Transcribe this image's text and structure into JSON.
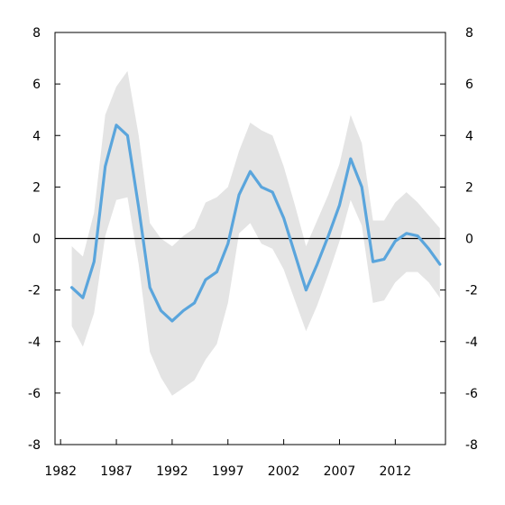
{
  "chart_data": {
    "type": "line",
    "title": "",
    "xlabel": "",
    "ylabel": "",
    "x": [
      1983,
      1984,
      1985,
      1986,
      1987,
      1988,
      1989,
      1990,
      1991,
      1992,
      1993,
      1994,
      1995,
      1996,
      1997,
      1998,
      1999,
      2000,
      2001,
      2002,
      2003,
      2004,
      2005,
      2006,
      2007,
      2008,
      2009,
      2010,
      2011,
      2012,
      2013,
      2014,
      2015,
      2016
    ],
    "series": [
      {
        "values": [
          -1.9,
          -2.3,
          -0.9,
          2.8,
          4.4,
          4.0,
          1.2,
          -1.9,
          -2.8,
          -3.2,
          -2.8,
          -2.5,
          -1.6,
          -1.3,
          -0.2,
          1.7,
          2.6,
          2.0,
          1.8,
          0.8,
          -0.6,
          -2.0,
          -1.0,
          0.1,
          1.3,
          3.1,
          2.0,
          -0.9,
          -0.8,
          -0.1,
          0.2,
          0.1,
          -0.4,
          -1.0
        ]
      }
    ],
    "band": {
      "upper": [
        -0.3,
        -0.7,
        1.0,
        4.8,
        5.9,
        6.5,
        4.0,
        0.6,
        0.0,
        -0.3,
        0.1,
        0.4,
        1.4,
        1.6,
        2.0,
        3.4,
        4.5,
        4.2,
        4.0,
        2.8,
        1.3,
        -0.3,
        0.7,
        1.7,
        2.9,
        4.8,
        3.7,
        0.7,
        0.7,
        1.4,
        1.8,
        1.4,
        0.9,
        0.4
      ],
      "lower": [
        -3.4,
        -4.2,
        -2.9,
        0.1,
        1.5,
        1.6,
        -1.0,
        -4.4,
        -5.4,
        -6.1,
        -5.8,
        -5.5,
        -4.7,
        -4.1,
        -2.5,
        0.2,
        0.6,
        -0.2,
        -0.4,
        -1.2,
        -2.4,
        -3.6,
        -2.6,
        -1.4,
        -0.1,
        1.5,
        0.5,
        -2.5,
        -2.4,
        -1.7,
        -1.3,
        -1.3,
        -1.7,
        -2.3
      ]
    },
    "xlim": [
      1981.5,
      2016.5
    ],
    "ylim": [
      -8,
      8
    ],
    "y_ticks": [
      8,
      6,
      4,
      2,
      0,
      -2,
      -4,
      -6,
      -8
    ],
    "x_ticks": [
      1982,
      1987,
      1992,
      1997,
      2002,
      2007,
      2012
    ],
    "x_tick_labels": [
      "1982",
      "1987",
      "1992",
      "1997",
      "2002",
      "2007",
      "2012"
    ],
    "y_tick_labels_left": [
      "8",
      "6",
      "4",
      "2",
      "0",
      "-2",
      "-4",
      "-6",
      "-8"
    ],
    "y_tick_labels_right": [
      "8",
      "6",
      "4",
      "2",
      "0",
      "-2",
      "-4",
      "-6",
      "-8"
    ],
    "grid": false,
    "zero_line": true,
    "colors": {
      "line": "#5aa5dc",
      "band": "#e4e4e4",
      "axis": "#000000"
    }
  }
}
